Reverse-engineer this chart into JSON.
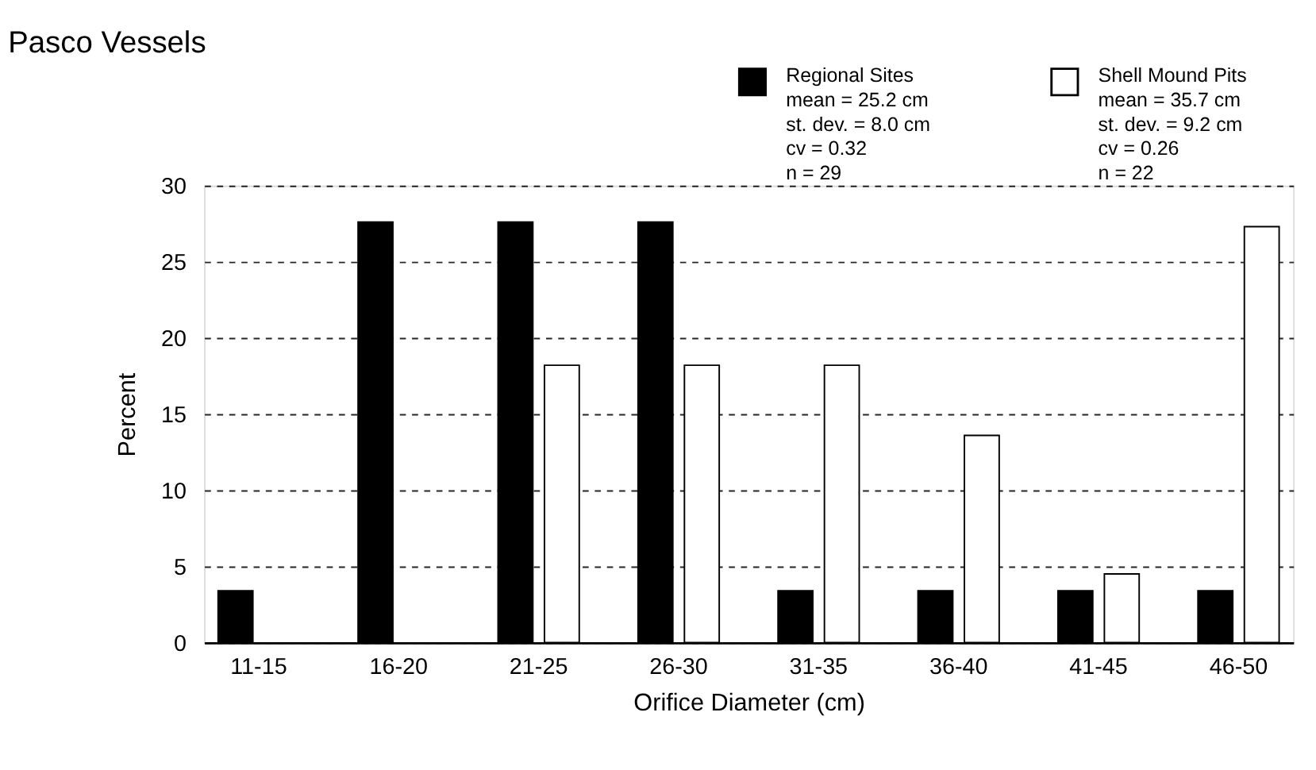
{
  "chart_data": {
    "type": "bar",
    "title": "Pasco Vessels",
    "xlabel": "Orifice Diameter (cm)",
    "ylabel": "Percent",
    "categories": [
      "11-15",
      "16-20",
      "21-25",
      "26-30",
      "31-35",
      "36-40",
      "41-45",
      "46-50"
    ],
    "series": [
      {
        "name": "Regional Sites",
        "color": "#000000",
        "values": [
          3.4,
          27.6,
          27.6,
          27.6,
          3.4,
          3.4,
          3.4,
          3.4
        ]
      },
      {
        "name": "Shell Mound Pits",
        "color": "#ffffff",
        "values": [
          0,
          0,
          18.2,
          18.2,
          18.2,
          13.6,
          4.5,
          27.3
        ]
      }
    ],
    "annotations": [
      "mean = 25.2 cm",
      "st. dev. = 8.0 cm",
      "cv = 0.32",
      "n = 29",
      "mean = 35.7 cm",
      "st. dev. = 9.2 cm",
      "cv = 0.26",
      "n = 22"
    ],
    "ylim": [
      0,
      30
    ],
    "yticks": [
      0,
      5,
      10,
      15,
      20,
      25,
      30
    ],
    "grid": "y",
    "legend": "top right"
  }
}
